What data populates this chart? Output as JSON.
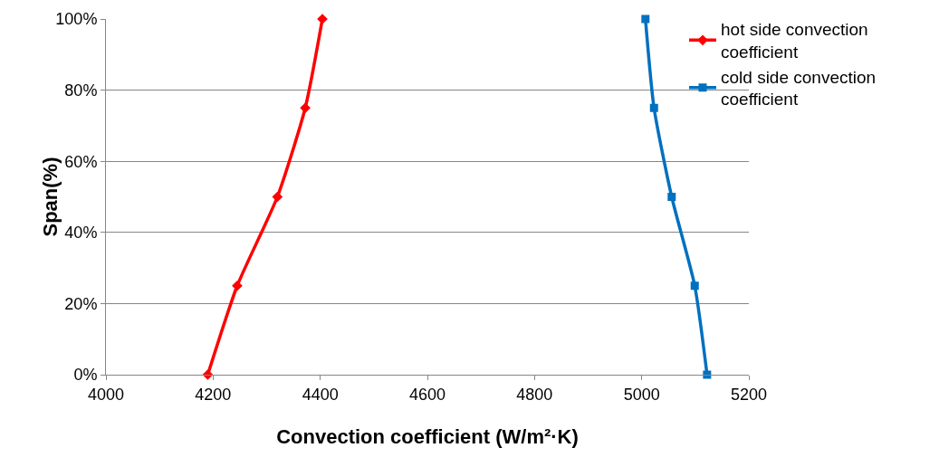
{
  "chart_data": {
    "type": "line",
    "xlabel": "Convection coefficient (W/m²·K)",
    "ylabel": "Span(%)",
    "series": [
      {
        "name": "hot side convection coefficient",
        "color": "#ff0000",
        "marker": "diamond",
        "x": [
          4190,
          4245,
          4320,
          4372,
          4404
        ],
        "values": [
          0,
          25,
          50,
          75,
          100
        ]
      },
      {
        "name": "cold side convection coefficient",
        "color": "#0070c0",
        "marker": "square",
        "x": [
          5122,
          5099,
          5056,
          5023,
          5007
        ],
        "values": [
          0,
          25,
          50,
          75,
          100
        ]
      }
    ],
    "xlim": [
      4000,
      5200
    ],
    "xticks": [
      4000,
      4200,
      4400,
      4600,
      4800,
      5000,
      5200
    ],
    "ylim": [
      0,
      100
    ],
    "yticks": [
      {
        "value": 0,
        "label": "0%"
      },
      {
        "value": 20,
        "label": "20%"
      },
      {
        "value": 40,
        "label": "40%"
      },
      {
        "value": 60,
        "label": "60%"
      },
      {
        "value": 80,
        "label": "80%"
      },
      {
        "value": 100,
        "label": "100%"
      }
    ],
    "grid": "y",
    "legend": "top right",
    "line_style": "solid"
  }
}
